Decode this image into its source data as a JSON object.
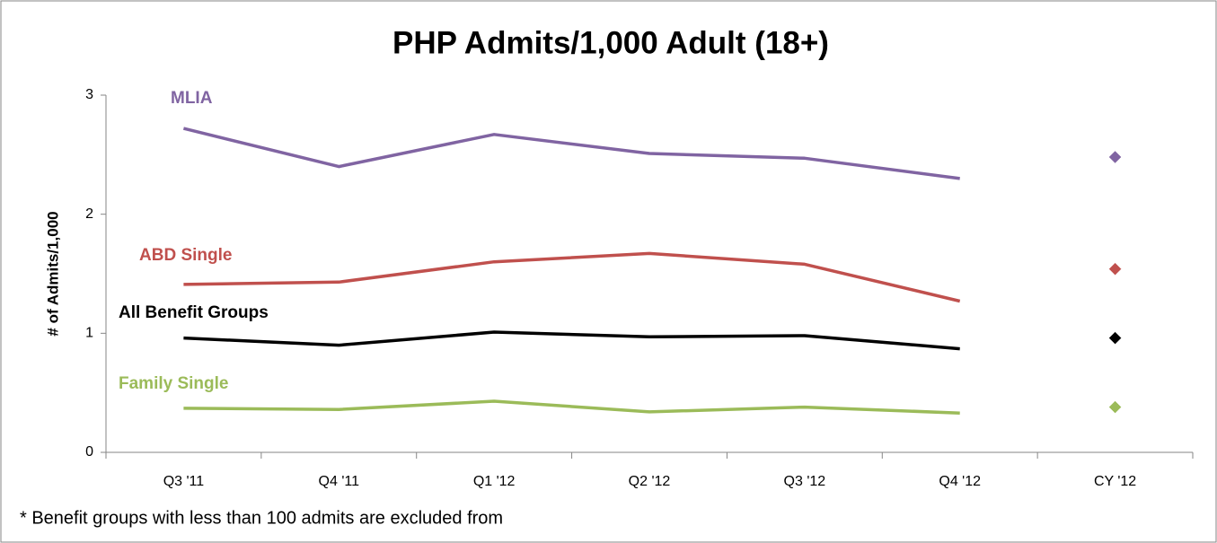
{
  "chart_data": {
    "type": "line",
    "title": "PHP Admits/1,000 Adult (18+)",
    "y_label": "# of Admits/1,000",
    "footnote": "*  Benefit groups with less than 100 admits are excluded from",
    "categories": [
      "Q3 '11",
      "Q4 '11",
      "Q1 '12",
      "Q2 '12",
      "Q3 '12",
      "Q4 '12",
      "CY '12"
    ],
    "ylim": [
      0,
      3
    ],
    "yticks": [
      0,
      1,
      2,
      3
    ],
    "grid": false,
    "series": [
      {
        "name": "MLIA",
        "color": "#8064a2",
        "values": [
          2.72,
          2.4,
          2.67,
          2.51,
          2.47,
          2.3,
          null
        ],
        "marker_values": [
          null,
          null,
          null,
          null,
          null,
          null,
          2.48
        ]
      },
      {
        "name": "ABD Single",
        "color": "#c0504d",
        "values": [
          1.41,
          1.43,
          1.6,
          1.67,
          1.58,
          1.27,
          null
        ],
        "marker_values": [
          null,
          null,
          null,
          null,
          null,
          null,
          1.54
        ]
      },
      {
        "name": "All Benefit Groups",
        "color": "#000000",
        "values": [
          0.96,
          0.9,
          1.01,
          0.97,
          0.98,
          0.87,
          null
        ],
        "marker_values": [
          null,
          null,
          null,
          null,
          null,
          null,
          0.96
        ]
      },
      {
        "name": "Family Single",
        "color": "#9bbb59",
        "values": [
          0.37,
          0.36,
          0.43,
          0.34,
          0.38,
          0.33,
          null
        ],
        "marker_values": [
          null,
          null,
          null,
          null,
          null,
          null,
          0.38
        ]
      }
    ]
  }
}
